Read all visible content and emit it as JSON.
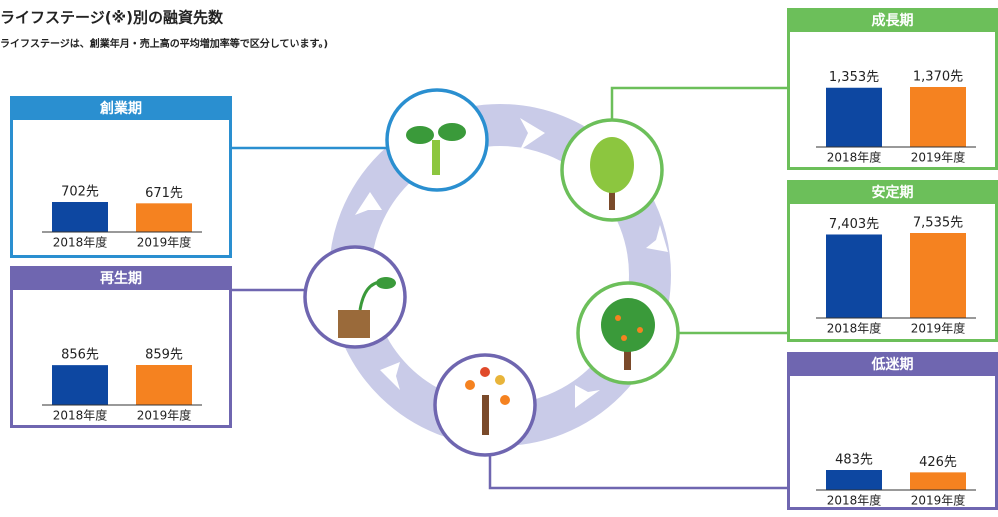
{
  "title": "ライフステージ(※)別の融資先数",
  "note": "ライフステージは、創業年月・売上高の平均増加率等で区分しています。)",
  "chart_data": [
    {
      "type": "bar",
      "title": "創業期",
      "color": "#2a8fd0",
      "categories": [
        "2018年度",
        "2019年度"
      ],
      "values": [
        702,
        671
      ],
      "value_labels": [
        "702先",
        "671先"
      ],
      "colors": [
        "#0d47a1",
        "#f58220"
      ]
    },
    {
      "type": "bar",
      "title": "再生期",
      "color": "#6f66b0",
      "categories": [
        "2018年度",
        "2019年度"
      ],
      "values": [
        856,
        859
      ],
      "value_labels": [
        "856先",
        "859先"
      ],
      "colors": [
        "#0d47a1",
        "#f58220"
      ]
    },
    {
      "type": "bar",
      "title": "成長期",
      "color": "#6cbf5a",
      "categories": [
        "2018年度",
        "2019年度"
      ],
      "values": [
        1353,
        1370
      ],
      "value_labels": [
        "1,353先",
        "1,370先"
      ],
      "colors": [
        "#0d47a1",
        "#f58220"
      ]
    },
    {
      "type": "bar",
      "title": "安定期",
      "color": "#6cbf5a",
      "categories": [
        "2018年度",
        "2019年度"
      ],
      "values": [
        7403,
        7535
      ],
      "value_labels": [
        "7,403先",
        "7,535先"
      ],
      "colors": [
        "#0d47a1",
        "#f58220"
      ]
    },
    {
      "type": "bar",
      "title": "低迷期",
      "color": "#6f66b0",
      "categories": [
        "2018年度",
        "2019年度"
      ],
      "values": [
        483,
        426
      ],
      "value_labels": [
        "483先",
        "426先"
      ],
      "colors": [
        "#0d47a1",
        "#f58220"
      ]
    }
  ]
}
